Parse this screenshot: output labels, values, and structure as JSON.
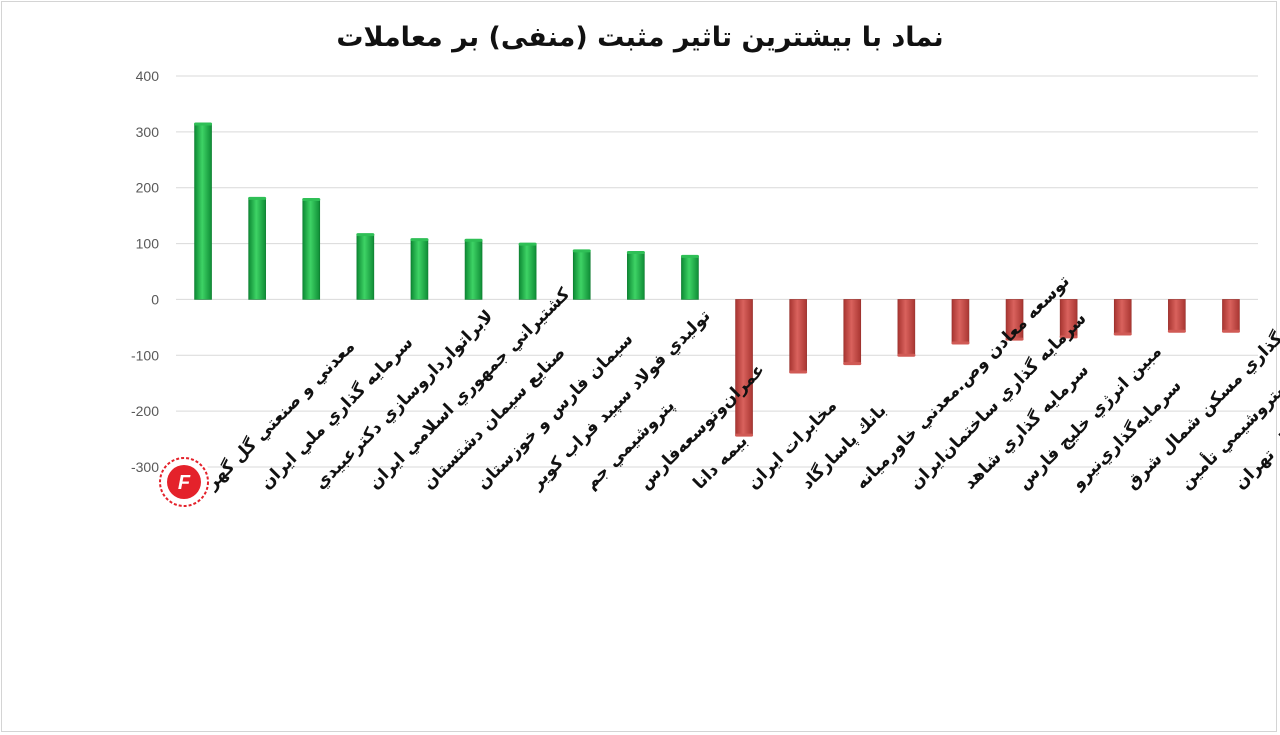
{
  "chart_data": {
    "type": "bar",
    "title": "نماد با بیشترین تاثیر مثبت (منفی) بر معاملات",
    "xlabel": "",
    "ylabel": "",
    "ylim": [
      -300,
      400
    ],
    "yticks": [
      400,
      300,
      200,
      100,
      0,
      -100,
      -200,
      -300
    ],
    "grid": true,
    "categories": [
      "معدني و صنعتي گل گهر",
      "سرمايه گذاري ملي ايران",
      "لابراتوارداروسازي دكترعبيدي",
      "كشتيراني جمهوري اسلامي ايران",
      "صنايع سيمان دشتستان",
      "سيمان فارس و خوزستان",
      "توليدي فولاد سپيد فراب كوير",
      "پتروشيمي جم",
      "عمران‌وتوسعه‌فارس",
      "بيمه دانا",
      "مخابرات ايران",
      "بانك پاسارگاد",
      "توسعه معادن وص.معدني خاورميانه",
      "سرمايه گذاري ساختمان‌ايران",
      "سرمايه گذاري شاهد",
      "مبين انرژي خليج فارس",
      "سرمايه‌گذاري‌نيرو",
      "سرمايه گذاري مسكن شمال شرق",
      "س. نفت و گاز و پتروشيمي تأمين",
      "بورس اوراق بهادار تهران"
    ],
    "values": [
      314,
      181,
      179,
      116,
      107,
      106,
      99,
      87,
      84,
      77,
      -243,
      -130,
      -115,
      -100,
      -78,
      -71,
      -67,
      -62,
      -57,
      -57
    ],
    "colors": {
      "positive": "#1fa847",
      "negative": "#c0504d"
    }
  },
  "logo": {
    "text": "F",
    "color": "#e4222b"
  }
}
